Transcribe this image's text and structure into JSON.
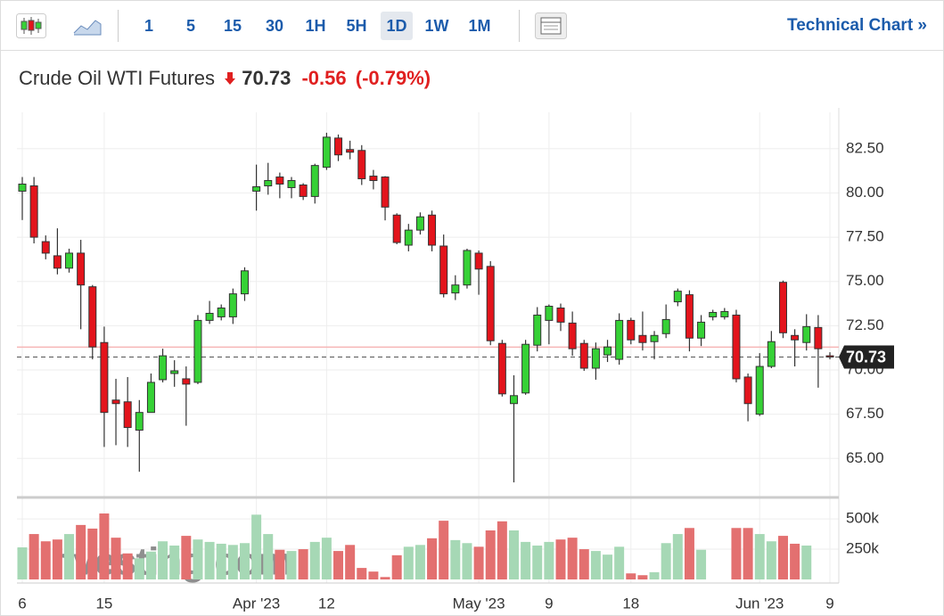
{
  "toolbar": {
    "intervals": [
      "1",
      "5",
      "15",
      "30",
      "1H",
      "5H",
      "1D",
      "1W",
      "1M"
    ],
    "active": "1D",
    "link": "Technical Chart »"
  },
  "header": {
    "title": "Crude Oil WTI Futures",
    "price": "70.73",
    "change": "-0.56",
    "change_percent": "(-0.79%)"
  },
  "chart_data": {
    "type": "candlestick",
    "watermark": "Investing.com",
    "categories": [
      "6",
      null,
      null,
      null,
      null,
      null,
      null,
      "15",
      null,
      null,
      null,
      null,
      null,
      null,
      null,
      null,
      null,
      null,
      null,
      null,
      "Apr '23",
      null,
      null,
      null,
      null,
      null,
      "12",
      null,
      null,
      null,
      null,
      null,
      null,
      null,
      null,
      null,
      null,
      null,
      null,
      "May '23",
      null,
      null,
      null,
      null,
      null,
      "9",
      null,
      null,
      null,
      null,
      null,
      null,
      "18",
      null,
      null,
      null,
      null,
      null,
      null,
      null,
      null,
      null,
      null,
      "Jun '23",
      null,
      null,
      null,
      null,
      null,
      "9"
    ],
    "open": [
      80.1,
      80.4,
      77.25,
      76.45,
      75.75,
      76.6,
      74.7,
      71.55,
      68.3,
      68.2,
      66.6,
      67.6,
      69.45,
      69.8,
      69.5,
      69.3,
      72.8,
      73.0,
      73.0,
      74.3,
      80.1,
      80.4,
      80.9,
      80.3,
      80.45,
      79.8,
      81.45,
      83.1,
      82.45,
      82.4,
      80.95,
      80.9,
      78.75,
      77.05,
      77.9,
      78.75,
      77.0,
      74.35,
      74.8,
      76.6,
      75.85,
      71.5,
      68.1,
      68.7,
      71.4,
      72.8,
      73.5,
      72.65,
      71.5,
      70.1,
      70.85,
      70.6,
      72.8,
      71.95,
      71.6,
      72.05,
      73.85,
      74.25,
      71.8,
      73.0,
      73.0,
      73.1,
      69.6,
      67.5,
      70.2,
      74.95,
      71.95,
      71.55,
      72.4,
      70.8
    ],
    "high": [
      80.9,
      80.9,
      77.6,
      78.0,
      76.85,
      77.35,
      74.8,
      72.45,
      69.5,
      69.6,
      68.3,
      69.8,
      71.2,
      70.55,
      70.2,
      73.1,
      73.9,
      73.7,
      74.6,
      75.8,
      81.6,
      81.7,
      81.15,
      80.9,
      80.55,
      81.65,
      83.4,
      83.3,
      82.95,
      82.7,
      81.3,
      80.95,
      78.85,
      78.25,
      78.9,
      79.0,
      77.65,
      75.35,
      76.85,
      76.75,
      76.15,
      71.7,
      69.7,
      71.7,
      73.55,
      73.7,
      73.75,
      73.3,
      71.7,
      71.55,
      71.7,
      73.2,
      72.95,
      73.3,
      72.2,
      73.7,
      74.6,
      74.5,
      73.1,
      73.4,
      73.5,
      73.4,
      69.8,
      70.95,
      72.2,
      75.05,
      72.3,
      73.15,
      73.1,
      71.0
    ],
    "low": [
      78.47,
      77.15,
      76.25,
      75.4,
      75.5,
      72.3,
      70.6,
      65.65,
      65.75,
      65.65,
      64.25,
      67.6,
      69.3,
      69.05,
      66.85,
      69.2,
      72.6,
      72.8,
      72.6,
      73.9,
      79.0,
      79.9,
      79.7,
      79.7,
      79.6,
      79.4,
      81.3,
      81.8,
      81.9,
      80.45,
      80.2,
      78.45,
      77.1,
      76.7,
      77.65,
      76.7,
      74.1,
      73.95,
      74.6,
      74.25,
      71.4,
      68.5,
      63.65,
      68.6,
      71.05,
      71.45,
      72.2,
      70.8,
      69.95,
      69.45,
      70.45,
      70.3,
      71.45,
      71.1,
      70.6,
      71.8,
      73.6,
      71.05,
      71.35,
      72.8,
      72.85,
      69.3,
      67.1,
      67.4,
      70.1,
      71.8,
      70.2,
      71.1,
      69.0,
      70.6
    ],
    "close": [
      80.5,
      77.5,
      76.6,
      75.75,
      76.6,
      74.8,
      71.3,
      67.6,
      68.1,
      66.75,
      67.6,
      69.3,
      70.8,
      69.95,
      69.2,
      72.8,
      73.2,
      73.5,
      74.3,
      75.6,
      80.35,
      80.7,
      80.5,
      80.7,
      79.8,
      81.55,
      83.15,
      82.15,
      82.3,
      80.8,
      80.7,
      79.2,
      77.2,
      77.9,
      78.65,
      77.05,
      74.3,
      74.8,
      76.75,
      75.7,
      71.65,
      68.65,
      68.55,
      71.45,
      73.1,
      73.6,
      72.7,
      71.2,
      70.1,
      71.2,
      71.3,
      72.8,
      71.7,
      71.55,
      71.95,
      72.85,
      74.45,
      71.8,
      72.7,
      73.25,
      73.3,
      69.5,
      68.1,
      70.2,
      71.6,
      72.1,
      71.7,
      72.45,
      71.2,
      70.73
    ],
    "volume": [
      265000,
      375000,
      315000,
      330000,
      375000,
      450000,
      420000,
      545000,
      345000,
      215000,
      175000,
      230000,
      315000,
      280000,
      360000,
      330000,
      310000,
      295000,
      285000,
      300000,
      535000,
      375000,
      245000,
      235000,
      250000,
      310000,
      345000,
      235000,
      285000,
      95000,
      65000,
      20000,
      200000,
      270000,
      285000,
      340000,
      485000,
      325000,
      300000,
      270000,
      405000,
      480000,
      405000,
      310000,
      280000,
      310000,
      330000,
      345000,
      250000,
      235000,
      205000,
      270000,
      50000,
      35000,
      60000,
      300000,
      375000,
      425000,
      245000,
      null,
      null,
      425000,
      425000,
      375000,
      315000,
      360000,
      295000,
      280000,
      null,
      null
    ],
    "up_color": "#36d136",
    "down_color": "#e3141c",
    "volume_up_color": "#a6d8b5",
    "volume_down_color": "#e37070",
    "previous_close": 71.29,
    "ylim": [
      62.9,
      84.05
    ],
    "yticks": [
      {
        "value": 65,
        "label": "65.00"
      },
      {
        "value": 67.5,
        "label": "67.50"
      },
      {
        "value": 70,
        "label": "70.00"
      },
      {
        "value": 72.5,
        "label": "72.50"
      },
      {
        "value": 75,
        "label": "75.00"
      },
      {
        "value": 77.5,
        "label": "77.50"
      },
      {
        "value": 80,
        "label": "80.00"
      },
      {
        "value": 82.5,
        "label": "82.50"
      }
    ],
    "y2lim": [
      0,
      670000
    ],
    "y2ticks": [
      {
        "value": 250000,
        "label": "250k"
      },
      {
        "value": 500000,
        "label": "500k"
      }
    ],
    "grid": true
  }
}
